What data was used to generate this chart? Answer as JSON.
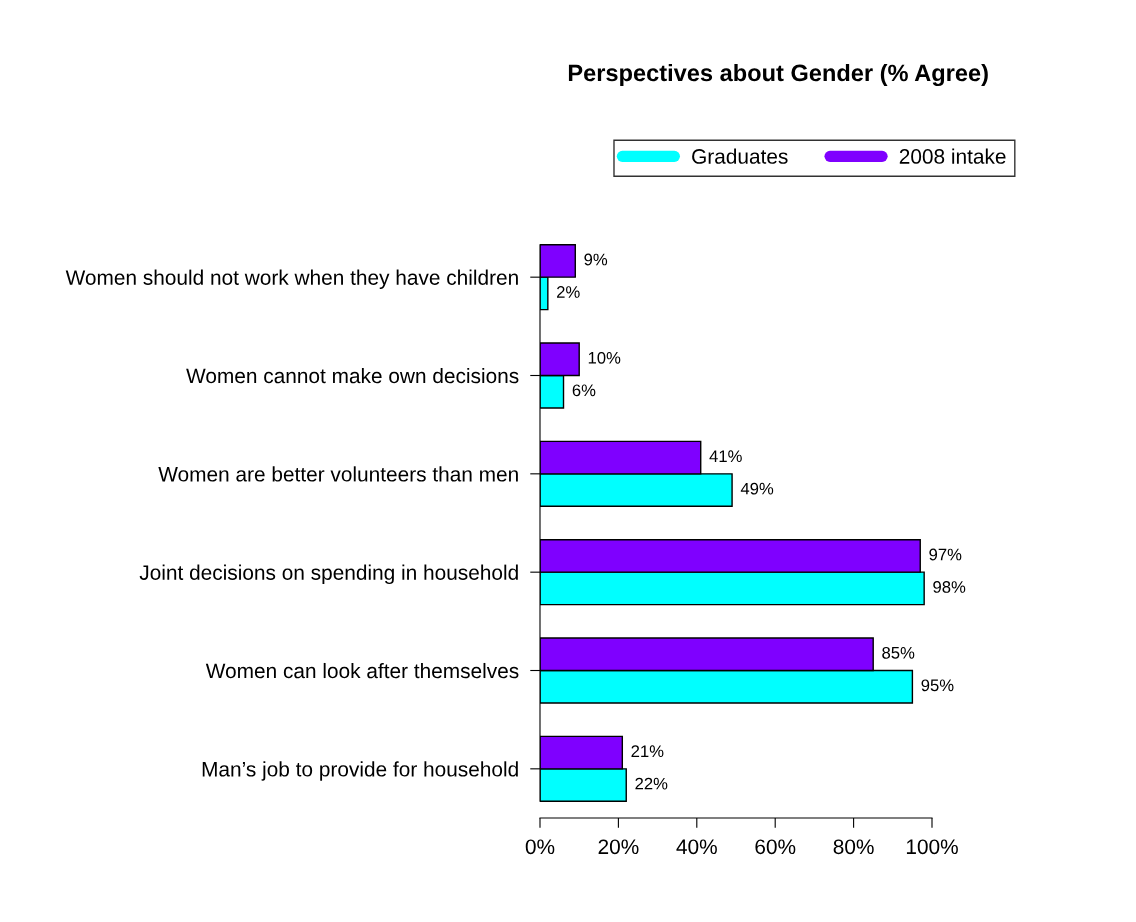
{
  "chart_data": {
    "type": "bar",
    "orientation": "horizontal",
    "title": "Perspectives about Gender (% Agree)",
    "categories": [
      "Women should not work when they have children",
      "Women cannot make own decisions",
      "Women are better volunteers than men",
      "Joint decisions on spending in household",
      "Women can look after themselves",
      "Man’s job to provide for household"
    ],
    "series": [
      {
        "name": "Graduates",
        "color": "#00ffff",
        "values": [
          2,
          6,
          49,
          98,
          95,
          22
        ],
        "value_labels": [
          "2%",
          "6%",
          "49%",
          "98%",
          "95%",
          "22%"
        ]
      },
      {
        "name": "2008 intake",
        "color": "#7f00ff",
        "values": [
          9,
          10,
          41,
          97,
          85,
          21
        ],
        "value_labels": [
          "9%",
          "10%",
          "41%",
          "97%",
          "85%",
          "21%"
        ]
      }
    ],
    "xlim": [
      0,
      100
    ],
    "xticks": [
      {
        "value": 0,
        "label": "0%"
      },
      {
        "value": 20,
        "label": "20%"
      },
      {
        "value": 40,
        "label": "40%"
      },
      {
        "value": 60,
        "label": "60%"
      },
      {
        "value": 80,
        "label": "80%"
      },
      {
        "value": 100,
        "label": "100%"
      }
    ],
    "legend": "top",
    "grid": false
  }
}
